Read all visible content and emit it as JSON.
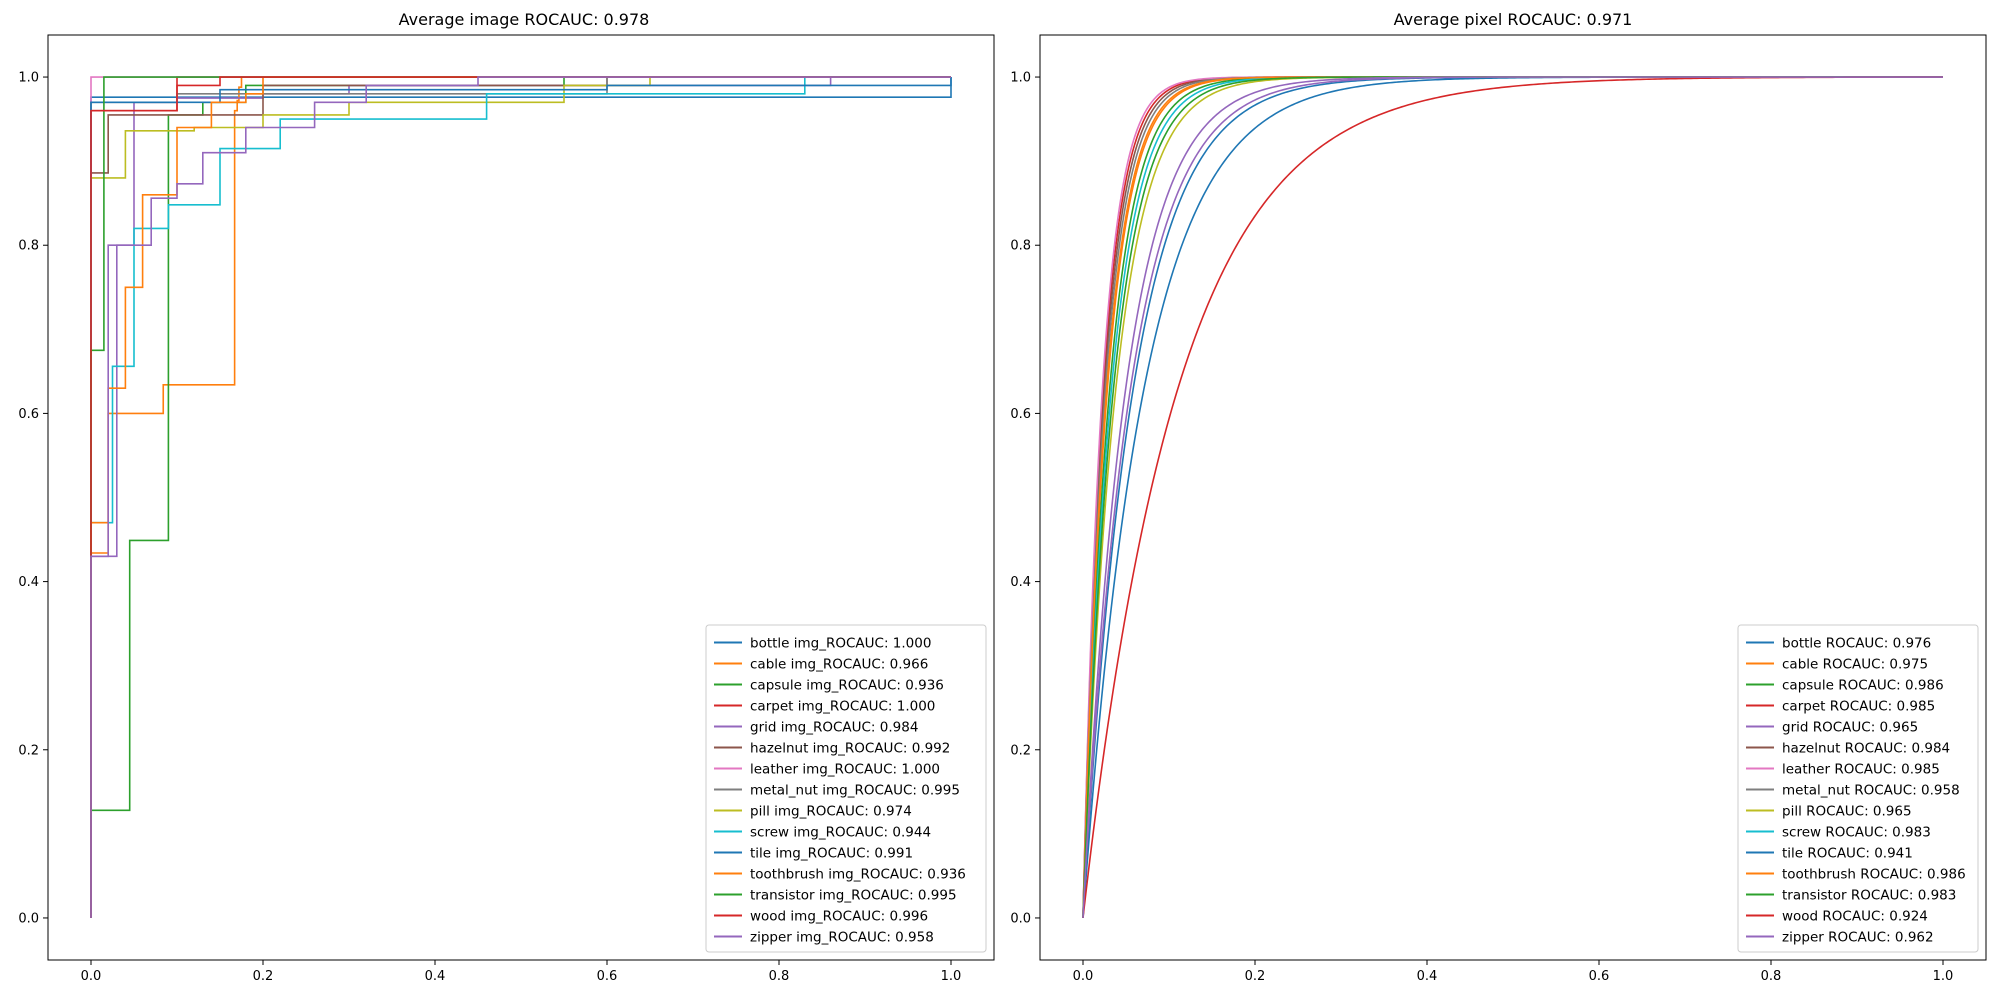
{
  "colors": [
    "#1f77b4",
    "#ff7f0e",
    "#2ca02c",
    "#d62728",
    "#9467bd",
    "#8c564b",
    "#e377c2",
    "#7f7f7f",
    "#bcbd22",
    "#17becf",
    "#1f77b4",
    "#ff7f0e",
    "#2ca02c",
    "#d62728",
    "#9467bd"
  ],
  "chart_data": [
    {
      "type": "line",
      "title": "Average image ROCAUC: 0.978",
      "xlim": [
        -0.05,
        1.05
      ],
      "ylim": [
        -0.05,
        1.05
      ],
      "xticks": [
        "0.0",
        "0.2",
        "0.4",
        "0.6",
        "0.8",
        "1.0"
      ],
      "yticks": [
        "0.0",
        "0.2",
        "0.4",
        "0.6",
        "0.8",
        "1.0"
      ],
      "legend_position": "lower-right",
      "series": [
        {
          "name": "bottle img_ROCAUC: 1.000",
          "steps": [
            [
              0,
              0
            ],
            [
              0,
              0.976
            ],
            [
              1,
              1
            ]
          ]
        },
        {
          "name": "cable img_ROCAUC: 0.966",
          "steps": [
            [
              0,
              0
            ],
            [
              0,
              0.434
            ],
            [
              0.02,
              0.6
            ],
            [
              0.084,
              0.634
            ],
            [
              0.167,
              0.96
            ],
            [
              0.17,
              0.972
            ],
            [
              0.172,
              0.988
            ],
            [
              0.175,
              1
            ],
            [
              1,
              1
            ]
          ]
        },
        {
          "name": "capsule img_ROCAUC: 0.936",
          "steps": [
            [
              0,
              0
            ],
            [
              0,
              0.128
            ],
            [
              0.045,
              0.449
            ],
            [
              0.09,
              0.955
            ],
            [
              0.13,
              0.97
            ],
            [
              0.18,
              0.99
            ],
            [
              0.55,
              1
            ],
            [
              1,
              1
            ]
          ]
        },
        {
          "name": "carpet img_ROCAUC: 1.000",
          "steps": [
            [
              0,
              0
            ],
            [
              0,
              0.96
            ],
            [
              0.1,
              1
            ],
            [
              1,
              1
            ]
          ]
        },
        {
          "name": "grid img_ROCAUC: 0.984",
          "steps": [
            [
              0,
              0
            ],
            [
              0,
              0.43
            ],
            [
              0.03,
              0.8
            ],
            [
              0.05,
              0.97
            ],
            [
              0.1,
              0.975
            ],
            [
              0.2,
              0.98
            ],
            [
              0.3,
              0.99
            ],
            [
              0.86,
              1
            ],
            [
              1,
              1
            ]
          ]
        },
        {
          "name": "hazelnut img_ROCAUC: 0.992",
          "steps": [
            [
              0,
              0
            ],
            [
              0,
              0.886
            ],
            [
              0.02,
              0.955
            ],
            [
              0.2,
              0.99
            ],
            [
              0.6,
              1
            ],
            [
              1,
              1
            ]
          ]
        },
        {
          "name": "leather img_ROCAUC: 1.000",
          "steps": [
            [
              0,
              0
            ],
            [
              0,
              1
            ],
            [
              1,
              1
            ]
          ]
        },
        {
          "name": "metal_nut img_ROCAUC: 0.995",
          "steps": [
            [
              0,
              0
            ],
            [
              0,
              0.97
            ],
            [
              0.1,
              0.98
            ],
            [
              0.6,
              1
            ],
            [
              1,
              1
            ]
          ]
        },
        {
          "name": "pill img_ROCAUC: 0.974",
          "steps": [
            [
              0,
              0
            ],
            [
              0,
              0.88
            ],
            [
              0.04,
              0.936
            ],
            [
              0.12,
              0.94
            ],
            [
              0.2,
              0.955
            ],
            [
              0.3,
              0.97
            ],
            [
              0.55,
              0.99
            ],
            [
              0.65,
              1
            ],
            [
              1,
              1
            ]
          ]
        },
        {
          "name": "screw img_ROCAUC: 0.944",
          "steps": [
            [
              0,
              0
            ],
            [
              0,
              0.47
            ],
            [
              0.025,
              0.656
            ],
            [
              0.05,
              0.82
            ],
            [
              0.09,
              0.848
            ],
            [
              0.15,
              0.915
            ],
            [
              0.22,
              0.95
            ],
            [
              0.46,
              0.98
            ],
            [
              0.83,
              1
            ],
            [
              1,
              1
            ]
          ]
        },
        {
          "name": "tile img_ROCAUC: 0.991",
          "steps": [
            [
              0,
              0
            ],
            [
              0,
              0.97
            ],
            [
              0.15,
              0.985
            ],
            [
              0.6,
              0.99
            ],
            [
              1,
              1
            ]
          ]
        },
        {
          "name": "toothbrush img_ROCAUC: 0.936",
          "steps": [
            [
              0,
              0
            ],
            [
              0,
              0.47
            ],
            [
              0.02,
              0.63
            ],
            [
              0.04,
              0.75
            ],
            [
              0.06,
              0.86
            ],
            [
              0.1,
              0.94
            ],
            [
              0.14,
              0.97
            ],
            [
              0.18,
              0.98
            ],
            [
              0.2,
              1
            ],
            [
              1,
              1
            ]
          ]
        },
        {
          "name": "transistor img_ROCAUC: 0.995",
          "steps": [
            [
              0,
              0
            ],
            [
              0,
              0.675
            ],
            [
              0.015,
              1
            ],
            [
              1,
              1
            ]
          ]
        },
        {
          "name": "wood img_ROCAUC: 0.996",
          "steps": [
            [
              0,
              0
            ],
            [
              0,
              0.96
            ],
            [
              0.1,
              0.99
            ],
            [
              0.15,
              1
            ],
            [
              1,
              1
            ]
          ]
        },
        {
          "name": "zipper img_ROCAUC: 0.958",
          "steps": [
            [
              0,
              0
            ],
            [
              0,
              0.43
            ],
            [
              0.02,
              0.8
            ],
            [
              0.07,
              0.856
            ],
            [
              0.1,
              0.873
            ],
            [
              0.13,
              0.91
            ],
            [
              0.18,
              0.94
            ],
            [
              0.26,
              0.97
            ],
            [
              0.32,
              0.99
            ],
            [
              0.45,
              1
            ],
            [
              1,
              1
            ]
          ]
        }
      ]
    },
    {
      "type": "line",
      "title": "Average pixel ROCAUC: 0.971",
      "xlim": [
        -0.05,
        1.05
      ],
      "ylim": [
        -0.05,
        1.05
      ],
      "xticks": [
        "0.0",
        "0.2",
        "0.4",
        "0.6",
        "0.8",
        "1.0"
      ],
      "yticks": [
        "0.0",
        "0.2",
        "0.4",
        "0.6",
        "0.8",
        "1.0"
      ],
      "legend_position": "lower-right",
      "series": [
        {
          "name": "bottle ROCAUC: 0.976",
          "k": 17
        },
        {
          "name": "cable ROCAUC: 0.975",
          "k": 35
        },
        {
          "name": "capsule ROCAUC: 0.986",
          "k": 32
        },
        {
          "name": "carpet ROCAUC: 0.985",
          "k": 42
        },
        {
          "name": "grid ROCAUC: 0.965",
          "k": 18
        },
        {
          "name": "hazelnut ROCAUC: 0.984",
          "k": 40
        },
        {
          "name": "leather ROCAUC: 0.985",
          "k": 44
        },
        {
          "name": "metal_nut ROCAUC: 0.958",
          "k": 38
        },
        {
          "name": "pill ROCAUC: 0.965",
          "k": 26
        },
        {
          "name": "screw ROCAUC: 0.983",
          "k": 30
        },
        {
          "name": "tile ROCAUC: 0.941",
          "k": 14
        },
        {
          "name": "toothbrush ROCAUC: 0.986",
          "k": 36
        },
        {
          "name": "transistor ROCAUC: 0.983",
          "k": 28
        },
        {
          "name": "wood ROCAUC: 0.924",
          "k": 9
        },
        {
          "name": "zipper ROCAUC: 0.962",
          "k": 20
        }
      ]
    }
  ]
}
